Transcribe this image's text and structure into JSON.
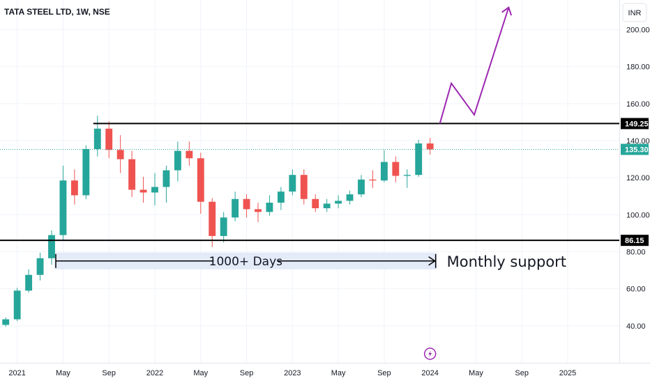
{
  "chart_data": {
    "type": "candlestick",
    "title": "TATA STEEL LTD, 1W, NSE",
    "currency": "INR",
    "ylim": [
      20,
      216
    ],
    "y_ticks": [
      "40.00",
      "60.00",
      "80.00",
      "100.00",
      "120.00",
      "140.00",
      "160.00",
      "180.00",
      "200.00"
    ],
    "x_range": [
      "2020-12",
      "2025-05"
    ],
    "x_ticks": [
      {
        "date": "2021-01",
        "label": "2021"
      },
      {
        "date": "2021-05",
        "label": "May"
      },
      {
        "date": "2021-09",
        "label": "Sep"
      },
      {
        "date": "2022-01",
        "label": "2022"
      },
      {
        "date": "2022-05",
        "label": "May"
      },
      {
        "date": "2022-09",
        "label": "Sep"
      },
      {
        "date": "2023-01",
        "label": "2023"
      },
      {
        "date": "2023-05",
        "label": "May"
      },
      {
        "date": "2023-09",
        "label": "Sep"
      },
      {
        "date": "2024-01",
        "label": "2024"
      },
      {
        "date": "2024-05",
        "label": "May"
      },
      {
        "date": "2024-09",
        "label": "Sep"
      },
      {
        "date": "2025-01",
        "label": "2025"
      }
    ],
    "last_price": "135.30",
    "colors": {
      "up": "#26a69a",
      "down": "#ef5350",
      "projection": "#9c27b0",
      "range_fill": "#e3eaf8",
      "text": "#131722"
    },
    "horizontal_levels": [
      {
        "value": 149.25,
        "label": "149.25"
      },
      {
        "value": 86.15,
        "label": "86.15"
      }
    ],
    "annotations": {
      "range_text": "1000+ Days",
      "support_text": "Monthly support",
      "range_start": "2021-04",
      "range_end": "2024-01",
      "range_level": 75
    },
    "projection_path": [
      {
        "date": "2024-01",
        "value": 149.25
      },
      {
        "date": "2024-02",
        "value": 171
      },
      {
        "date": "2024-04",
        "value": 154
      },
      {
        "date": "2024-07",
        "value": 212
      }
    ],
    "series": [
      {
        "date": "2020-12",
        "open": 40.5,
        "high": 44.5,
        "low": 39.5,
        "close": 43.5
      },
      {
        "date": "2021-01",
        "open": 43.5,
        "high": 60.5,
        "low": 42.5,
        "close": 59
      },
      {
        "date": "2021-02",
        "open": 59,
        "high": 70.5,
        "low": 58,
        "close": 67.5
      },
      {
        "date": "2021-03",
        "open": 67.5,
        "high": 79.5,
        "low": 64.5,
        "close": 76.5
      },
      {
        "date": "2021-04",
        "open": 76.5,
        "high": 91.5,
        "low": 73,
        "close": 89
      },
      {
        "date": "2021-05",
        "open": 89,
        "high": 126.5,
        "low": 86.5,
        "close": 118.5
      },
      {
        "date": "2021-06",
        "open": 118.5,
        "high": 124.5,
        "low": 105.5,
        "close": 110.5
      },
      {
        "date": "2021-07",
        "open": 110.5,
        "high": 137.5,
        "low": 108.5,
        "close": 135.5
      },
      {
        "date": "2021-08",
        "open": 135.5,
        "high": 153.5,
        "low": 131.5,
        "close": 146.5
      },
      {
        "date": "2021-09",
        "open": 146.5,
        "high": 150.5,
        "low": 130.5,
        "close": 135
      },
      {
        "date": "2021-10",
        "open": 135,
        "high": 143,
        "low": 122.5,
        "close": 130
      },
      {
        "date": "2021-11",
        "open": 130,
        "high": 134.5,
        "low": 109.5,
        "close": 113.5
      },
      {
        "date": "2021-12",
        "open": 113.5,
        "high": 120.5,
        "low": 106.5,
        "close": 112
      },
      {
        "date": "2022-01",
        "open": 112,
        "high": 122.5,
        "low": 105,
        "close": 115
      },
      {
        "date": "2022-02",
        "open": 115,
        "high": 126.5,
        "low": 106.5,
        "close": 124
      },
      {
        "date": "2022-03",
        "open": 124,
        "high": 139.5,
        "low": 118,
        "close": 134.5
      },
      {
        "date": "2022-04",
        "open": 134.5,
        "high": 139.5,
        "low": 126.5,
        "close": 130.5
      },
      {
        "date": "2022-05",
        "open": 130.5,
        "high": 133.5,
        "low": 100.5,
        "close": 107
      },
      {
        "date": "2022-06",
        "open": 107,
        "high": 109,
        "low": 82.5,
        "close": 88.5
      },
      {
        "date": "2022-07",
        "open": 88.5,
        "high": 101.5,
        "low": 85,
        "close": 98.5
      },
      {
        "date": "2022-08",
        "open": 98.5,
        "high": 112.5,
        "low": 96.5,
        "close": 108.5
      },
      {
        "date": "2022-09",
        "open": 108.5,
        "high": 111,
        "low": 98.5,
        "close": 103
      },
      {
        "date": "2022-10",
        "open": 103,
        "high": 106.5,
        "low": 96,
        "close": 101.5
      },
      {
        "date": "2022-11",
        "open": 101.5,
        "high": 110.5,
        "low": 99.5,
        "close": 106.5
      },
      {
        "date": "2022-12",
        "open": 106.5,
        "high": 115,
        "low": 102.5,
        "close": 112.5
      },
      {
        "date": "2023-01",
        "open": 112.5,
        "high": 124.5,
        "low": 110.5,
        "close": 121.5
      },
      {
        "date": "2023-02",
        "open": 121.5,
        "high": 124.5,
        "low": 105.5,
        "close": 108.5
      },
      {
        "date": "2023-03",
        "open": 108.5,
        "high": 111,
        "low": 101.5,
        "close": 103.5
      },
      {
        "date": "2023-04",
        "open": 103.5,
        "high": 108.5,
        "low": 101.5,
        "close": 106
      },
      {
        "date": "2023-05",
        "open": 106,
        "high": 110.5,
        "low": 103.5,
        "close": 107.5
      },
      {
        "date": "2023-06",
        "open": 107.5,
        "high": 113,
        "low": 105.5,
        "close": 111
      },
      {
        "date": "2023-07",
        "open": 111,
        "high": 121.5,
        "low": 109.5,
        "close": 119
      },
      {
        "date": "2023-08",
        "open": 119,
        "high": 124,
        "low": 114.5,
        "close": 118.5
      },
      {
        "date": "2023-09",
        "open": 118.5,
        "high": 135,
        "low": 117.5,
        "close": 128.5
      },
      {
        "date": "2023-10",
        "open": 128.5,
        "high": 131.5,
        "low": 117.5,
        "close": 121
      },
      {
        "date": "2023-11",
        "open": 121,
        "high": 124.5,
        "low": 114.5,
        "close": 121.5
      },
      {
        "date": "2023-12",
        "open": 121.5,
        "high": 140.5,
        "low": 120.5,
        "close": 138.5
      },
      {
        "date": "2024-01",
        "open": 138.5,
        "high": 141.5,
        "low": 132.5,
        "close": 135.3
      }
    ]
  }
}
